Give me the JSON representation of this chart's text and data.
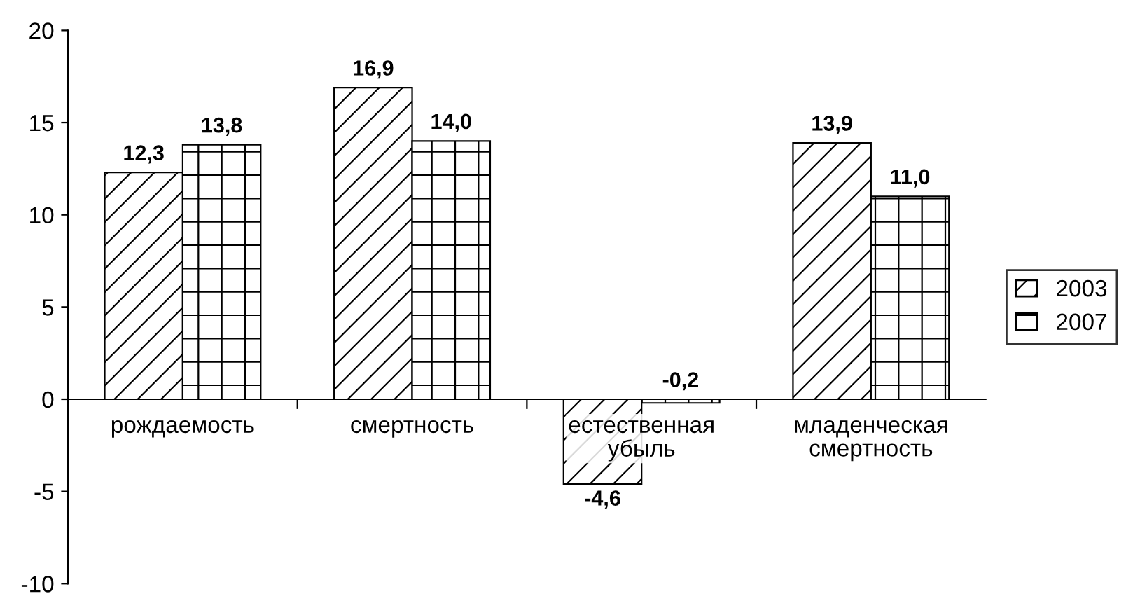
{
  "chart_data": {
    "type": "bar",
    "categories": [
      "рождаемость",
      "смертность",
      "естественная\nубыль",
      "младенческая\nсмертность"
    ],
    "series": [
      {
        "name": "2003",
        "color": "#000000",
        "values": [
          12.3,
          16.9,
          -4.6,
          13.9
        ],
        "value_labels": [
          "12,3",
          "16,9",
          "-4,6",
          "13,9"
        ]
      },
      {
        "name": "2007",
        "color": "#000000",
        "values": [
          13.8,
          14.0,
          -0.2,
          11.0
        ],
        "value_labels": [
          "13,8",
          "14,0",
          "-0,2",
          "11,0"
        ]
      }
    ],
    "ylim": [
      -10,
      20
    ],
    "yticks": [
      -10,
      -5,
      0,
      5,
      10,
      15,
      20
    ],
    "grid": false,
    "legend": "right"
  }
}
